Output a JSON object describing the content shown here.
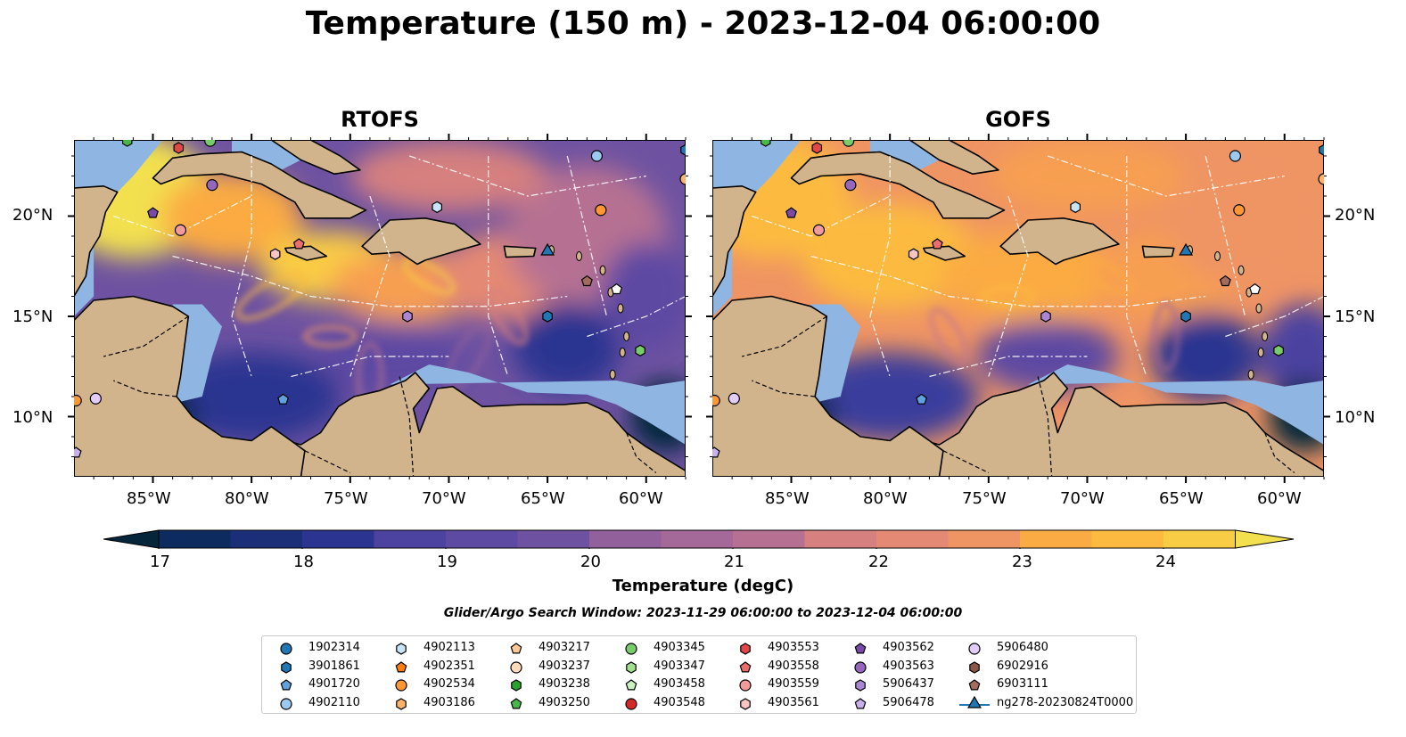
{
  "title": "Temperature (150 m) - 2023-12-04 06:00:00",
  "panels": [
    {
      "title": "RTOFS"
    },
    {
      "title": "GOFS"
    }
  ],
  "lon_ticks": [
    "85°W",
    "80°W",
    "75°W",
    "70°W",
    "65°W",
    "60°W"
  ],
  "lat_ticks": [
    "20°N",
    "15°N",
    "10°N"
  ],
  "colorbar": {
    "label": "Temperature (degC)",
    "ticks": [
      "17",
      "18",
      "19",
      "20",
      "21",
      "22",
      "23",
      "24"
    ],
    "colors": [
      "#04253a",
      "#0d2b5e",
      "#1b2f78",
      "#2b3591",
      "#3b3c9c",
      "#4c42a0",
      "#5d4aa2",
      "#6e52a1",
      "#80599f",
      "#92619c",
      "#a46998",
      "#b67192",
      "#c7788a",
      "#d6807f",
      "#e48973",
      "#ef9463",
      "#f79f51",
      "#fbab43",
      "#fcbb40",
      "#f9cc45",
      "#f2e04f"
    ],
    "extend": "both"
  },
  "search_window": "Glider/Argo Search Window: 2023-11-29 06:00:00 to 2023-12-04 06:00:00",
  "colors": {
    "ocean_deep": "#04253a",
    "land": "#d2b48c",
    "shelf": "#8fb5e3",
    "coast": "#000000"
  },
  "legend": [
    {
      "label": "1902314",
      "marker": "circle",
      "color": "#1f77b4"
    },
    {
      "label": "3901861",
      "marker": "hexagon",
      "color": "#1f77b4"
    },
    {
      "label": "4901720",
      "marker": "pentagon",
      "color": "#5fa2dd"
    },
    {
      "label": "4902110",
      "marker": "circle",
      "color": "#9cc9ef"
    },
    {
      "label": "4902113",
      "marker": "hexagon",
      "color": "#c7e4f9"
    },
    {
      "label": "4902351",
      "marker": "pentagon",
      "color": "#ff7f0e"
    },
    {
      "label": "4902534",
      "marker": "circle",
      "color": "#ff9833"
    },
    {
      "label": "4903186",
      "marker": "hexagon",
      "color": "#ffb26b"
    },
    {
      "label": "4903217",
      "marker": "pentagon",
      "color": "#ffc996"
    },
    {
      "label": "4903237",
      "marker": "circle",
      "color": "#ffdcbc"
    },
    {
      "label": "4903238",
      "marker": "hexagon",
      "color": "#2ca02c"
    },
    {
      "label": "4903250",
      "marker": "pentagon",
      "color": "#49b649"
    },
    {
      "label": "4903345",
      "marker": "circle",
      "color": "#78cc6b"
    },
    {
      "label": "4903347",
      "marker": "hexagon",
      "color": "#a2e08f"
    },
    {
      "label": "4903458",
      "marker": "pentagon",
      "color": "#c9f2c0"
    },
    {
      "label": "4903548",
      "marker": "circle",
      "color": "#d62728"
    },
    {
      "label": "4903553",
      "marker": "hexagon",
      "color": "#e0464a"
    },
    {
      "label": "4903558",
      "marker": "pentagon",
      "color": "#ea6e6e"
    },
    {
      "label": "4903559",
      "marker": "circle",
      "color": "#f39b9b"
    },
    {
      "label": "4903561",
      "marker": "hexagon",
      "color": "#f8c4c4"
    },
    {
      "label": "4903562",
      "marker": "pentagon",
      "color": "#7b49a8"
    },
    {
      "label": "4903563",
      "marker": "circle",
      "color": "#9467bd"
    },
    {
      "label": "5906437",
      "marker": "hexagon",
      "color": "#aa86d4"
    },
    {
      "label": "5906478",
      "marker": "pentagon",
      "color": "#cab0ea"
    },
    {
      "label": "5906480",
      "marker": "circle",
      "color": "#e1cdf7"
    },
    {
      "label": "6902916",
      "marker": "hexagon",
      "color": "#8c564b"
    },
    {
      "label": "6903111",
      "marker": "pentagon",
      "color": "#a36c5e"
    },
    {
      "label": "ng278-20230824T0000",
      "marker": "triangle-line",
      "color": "#1f77b4"
    }
  ],
  "floats": [
    {
      "lon": -85.0,
      "lat": 20.15,
      "marker": "pentagon",
      "color": "#7b49a8"
    },
    {
      "lon": -83.6,
      "lat": 19.3,
      "marker": "circle",
      "color": "#f39b9b"
    },
    {
      "lon": -82.0,
      "lat": 21.55,
      "marker": "circle",
      "color": "#9467bd"
    },
    {
      "lon": -83.7,
      "lat": 23.4,
      "marker": "hexagon",
      "color": "#e0464a"
    },
    {
      "lon": -86.3,
      "lat": 23.75,
      "marker": "hexagon",
      "color": "#49b649"
    },
    {
      "lon": -82.1,
      "lat": 23.75,
      "marker": "circle",
      "color": "#78cc6b"
    },
    {
      "lon": -78.8,
      "lat": 18.1,
      "marker": "hexagon",
      "color": "#f8c4c4"
    },
    {
      "lon": -77.6,
      "lat": 18.6,
      "marker": "pentagon",
      "color": "#ea6e6e"
    },
    {
      "lon": -70.6,
      "lat": 20.45,
      "marker": "hexagon",
      "color": "#c7e4f9"
    },
    {
      "lon": -62.5,
      "lat": 23.0,
      "marker": "circle",
      "color": "#9cc9ef"
    },
    {
      "lon": -62.3,
      "lat": 20.3,
      "marker": "circle",
      "color": "#ff9833"
    },
    {
      "lon": -58.0,
      "lat": 23.3,
      "marker": "hexagon",
      "color": "#1f77b4"
    },
    {
      "lon": -58.0,
      "lat": 21.85,
      "marker": "circle",
      "color": "#ffb26b"
    },
    {
      "lon": -65.0,
      "lat": 15.0,
      "marker": "hexagon",
      "color": "#1f77b4"
    },
    {
      "lon": -72.1,
      "lat": 15.0,
      "marker": "hexagon",
      "color": "#aa86d4"
    },
    {
      "lon": -63.0,
      "lat": 16.75,
      "marker": "pentagon",
      "color": "#a36c5e"
    },
    {
      "lon": -61.5,
      "lat": 16.35,
      "marker": "pentagon",
      "color": "#ffffff"
    },
    {
      "lon": -60.3,
      "lat": 13.3,
      "marker": "hexagon",
      "color": "#78cc6b"
    },
    {
      "lon": -78.4,
      "lat": 10.85,
      "marker": "pentagon",
      "color": "#5fa2dd"
    },
    {
      "lon": -87.9,
      "lat": 10.9,
      "marker": "circle",
      "color": "#e1cdf7"
    },
    {
      "lon": -88.9,
      "lat": 10.8,
      "marker": "circle",
      "color": "#ff9833"
    },
    {
      "lon": -88.9,
      "lat": 8.2,
      "marker": "pentagon",
      "color": "#cab0ea"
    }
  ],
  "glider": {
    "label": "ng278-20230824T0000",
    "lon": -65.0,
    "lat": 18.2,
    "color": "#1f77b4"
  },
  "map_extent": {
    "lon": [
      -89.0,
      -58.0
    ],
    "lat": [
      7.0,
      23.8
    ]
  }
}
